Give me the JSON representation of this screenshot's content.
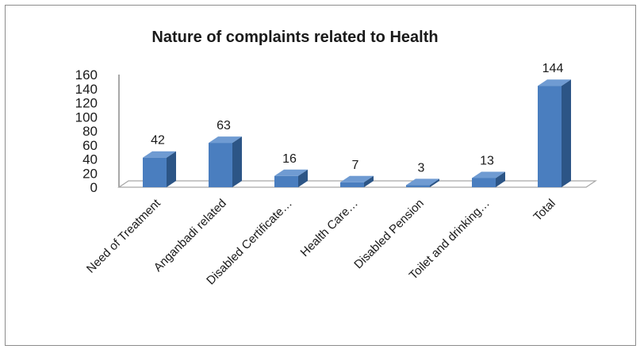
{
  "chart_data": {
    "type": "bar",
    "title": "Nature of complaints related to Health",
    "xlabel": "",
    "ylabel": "",
    "categories": [
      "Need of Treatment",
      "Anganbadi related",
      "Disabled Certificate…",
      "Health Care…",
      "Disabled Pension",
      "Toilet and drinking…",
      "Total"
    ],
    "values": [
      42,
      63,
      16,
      7,
      3,
      13,
      144
    ],
    "data_labels": [
      "42",
      "63",
      "16",
      "7",
      "3",
      "13",
      "144"
    ],
    "ylim": [
      0,
      160
    ],
    "yticks": [
      "0",
      "20",
      "40",
      "60",
      "80",
      "100",
      "120",
      "140",
      "160"
    ],
    "grid": false,
    "legend": "none",
    "style": "3d-column",
    "colors": {
      "bar_front": "#4a7ebf",
      "bar_side": "#2c5586",
      "bar_top": "#6f9bd2",
      "floor": "#ffffff",
      "floor_edge": "#a6a6a6",
      "axis": "#8c8c8c"
    }
  }
}
